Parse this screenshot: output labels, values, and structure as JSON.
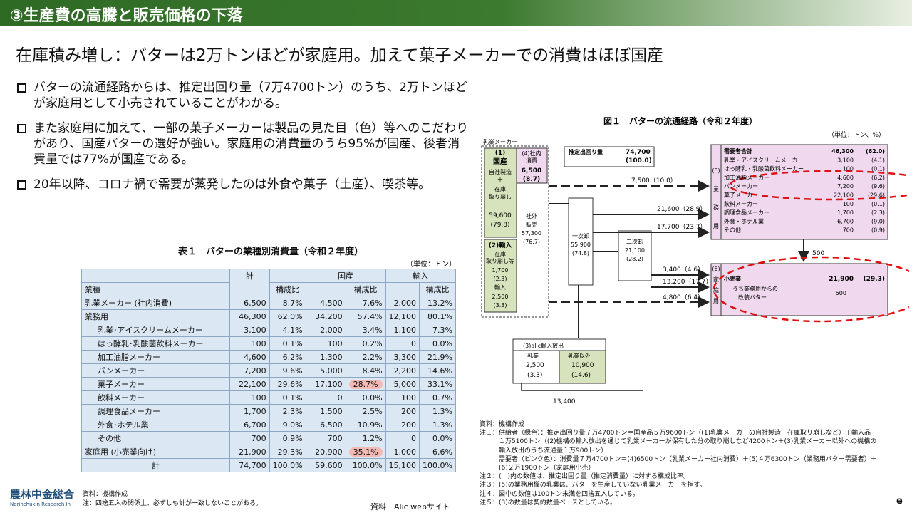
{
  "header": {
    "title": "③生産費の高騰と販売価格の下落"
  },
  "subtitle": "在庫積み増し：バターは2万トンほどが家庭用。加えて菓子メーカーでの消費はほぼ国産",
  "bullets": [
    "バターの流通経路からは、推定出回り量（7万4700トン）のうち、2万トンほどが家庭用として小売されていることがわかる。",
    "また家庭用に加えて、一部の菓子メーカーは製品の見た目（色）等へのこだわりがあり、国産バターの選好が強い。家庭用の消費量のうち95%が国産、後者消費量では77%が国産である。",
    "20年以降、コロナ禍で需要が蒸発したのは外食や菓子（土産）、喫茶等。"
  ],
  "table": {
    "title": "表１　バターの業種別消費量（令和２年度）",
    "unit": "（単位：トン）",
    "head": {
      "kei": "計",
      "kokusan": "国産",
      "yunyu": "輸入",
      "gyoshu": "業種",
      "kosei": "構成比"
    },
    "rows": [
      {
        "name": "乳業メーカー (社内消費)",
        "v": [
          "6,500",
          "8.7%",
          "4,500",
          "7.6%",
          "2,000",
          "13.2%"
        ]
      },
      {
        "name": "業務用",
        "v": [
          "46,300",
          "62.0%",
          "34,200",
          "57.4%",
          "12,100",
          "80.1%"
        ]
      },
      {
        "name": "乳業･アイスクリームメーカー",
        "v": [
          "3,100",
          "4.1%",
          "2,000",
          "3.4%",
          "1,100",
          "7.3%"
        ]
      },
      {
        "name": "はっ酵乳･乳酸菌飲料メーカー",
        "v": [
          "100",
          "0.1%",
          "100",
          "0.2%",
          "0",
          "0.0%"
        ]
      },
      {
        "name": "加工油脂メーカー",
        "v": [
          "4,600",
          "6.2%",
          "1,300",
          "2.2%",
          "3,300",
          "21.9%"
        ]
      },
      {
        "name": "パンメーカー",
        "v": [
          "7,200",
          "9.6%",
          "5,000",
          "8.4%",
          "2,200",
          "14.6%"
        ]
      },
      {
        "name": "菓子メーカー",
        "v": [
          "22,100",
          "29.6%",
          "17,100",
          "28.7%",
          "5,000",
          "33.1%"
        ]
      },
      {
        "name": "飲料メーカー",
        "v": [
          "100",
          "0.1%",
          "0",
          "0.0%",
          "100",
          "0.7%"
        ]
      },
      {
        "name": "調理食品メーカー",
        "v": [
          "1,700",
          "2.3%",
          "1,500",
          "2.5%",
          "200",
          "1.3%"
        ]
      },
      {
        "name": "外食･ホテル業",
        "v": [
          "6,700",
          "9.0%",
          "6,500",
          "10.9%",
          "200",
          "1.3%"
        ]
      },
      {
        "name": "その他",
        "v": [
          "700",
          "0.9%",
          "700",
          "1.2%",
          "0",
          "0.0%"
        ]
      },
      {
        "name": "家庭用 (小売業向け)",
        "v": [
          "21,900",
          "29.3%",
          "20,900",
          "35.1%",
          "1,000",
          "6.6%"
        ]
      },
      {
        "name": "計",
        "v": [
          "74,700",
          "100.0%",
          "59,600",
          "100.0%",
          "15,100",
          "100.0%"
        ]
      }
    ],
    "source": "資料：機構作成",
    "note": "注：四捨五入の関係上、必ずしも計が一致しないことがある。"
  },
  "source_label": "資料　Alic webサイト",
  "logo": {
    "main": "農林中金総合",
    "sub": "Norinchukin Research In"
  },
  "figure": {
    "title": "図１　バターの流通経路（令和２年度）",
    "unit": "（単位：トン、%）",
    "maker": "乳業メーカー",
    "kokusan_box": [
      "(1)",
      "国産",
      "自社製造",
      "＋",
      "在庫",
      "取り崩し"
    ],
    "kokusan_val": [
      "59,600",
      "(79.8)"
    ],
    "shanai": [
      "(4)社内",
      "消費"
    ],
    "shanai_val": [
      "6,500",
      "(8.7)"
    ],
    "shagai": [
      "社外",
      "販売",
      "57,300",
      "(76.7)"
    ],
    "yunyu_box": [
      "(2)輸入",
      "在庫",
      "取り崩し等",
      "1,700",
      "(2.3)",
      "輸入",
      "2,500",
      "(3.3)"
    ],
    "est_label": "推定出回り量",
    "est_val": [
      "74,700",
      "(100.0)"
    ],
    "ichiji": [
      "一次卸",
      "55,900",
      "(74.8)"
    ],
    "niji": [
      "二次卸",
      "21,100",
      "(28.2)"
    ],
    "arrows": [
      "7,500（10.0）",
      "21,600（28.9）",
      "17,700（23.7）",
      "3,400（4.6）",
      "13,200（17.7）",
      "4,800（6.4）",
      "500"
    ],
    "gyomu_side": [
      "(5)",
      "業",
      "務",
      "用"
    ],
    "gyomu": [
      [
        "需要者合計",
        "46,300",
        "(62.0)"
      ],
      [
        "乳業・アイスクリームメーカー",
        "3,100",
        "(4.1)"
      ],
      [
        "はっ酵乳・乳酸菌飲料メーカー",
        "100",
        "(0.1)"
      ],
      [
        "加工油脂メーカー",
        "4,600",
        "(6.2)"
      ],
      [
        "パンメーカー",
        "7,200",
        "(9.6)"
      ],
      [
        "菓子メーカー",
        "22,100",
        "(29.6)"
      ],
      [
        "飲料メーカー",
        "100",
        "(0.1)"
      ],
      [
        "調理食品メーカー",
        "1,700",
        "(2.3)"
      ],
      [
        "外食・ホテル業",
        "6,700",
        "(9.0)"
      ],
      [
        "その他",
        "700",
        "(0.9)"
      ]
    ],
    "katei_side": [
      "(6)",
      "家",
      "庭",
      "用"
    ],
    "katei": [
      "小売業",
      "21,900",
      "(29.3)",
      "うち業務用からの",
      "改装バター",
      "500"
    ],
    "alic": {
      "title": "(3)alic輸入放出",
      "c1": "乳業",
      "c2": "乳業以外",
      "v1": [
        "2,500",
        "(3.3)"
      ],
      "v2": [
        "10,900",
        "(14.6)"
      ]
    },
    "alic_total": "13,400",
    "notes": [
      "資料：機構作成",
      "注１：供給者（緑色）：推定出回り量７万4700トン＝国産品５万9600トン（(1)乳業メーカーの自社製造＋在庫取り崩しなど）＋輸入品",
      "　　　１万5100トン（(2)機構の輸入放出を通じて乳業メーカーが保有した分の取り崩しなど4200トン＋(3)乳業メーカー以外への機構の",
      "　　　輸入放出のうち流通量１万900トン）",
      "　　　需要者（ピンク色）：消費量７万4700トン＝(4)6500トン（乳業メーカー社内消費）＋(5)４万6300トン（業務用バター需要者）＋",
      "　　　(6)２万1900トン（家庭用小売）",
      "注２：(　)内の数値は、推定出回り量（推定消費量）に対する構成比率。",
      "注３：(5)の業務用欄の乳業は、バターを生産していない乳業メーカーを指す。",
      "注４：図中の数値は100トン未満を四捨五入している。",
      "注５：(3)の数量は契約数量ベースとしている。"
    ]
  },
  "corner": "e",
  "colors": {
    "header": "#2f6a25",
    "supplier": "#d6e3bc",
    "demand": "#f0d9ee",
    "highlight": "#f4b9b4",
    "dash": "#e01010"
  }
}
